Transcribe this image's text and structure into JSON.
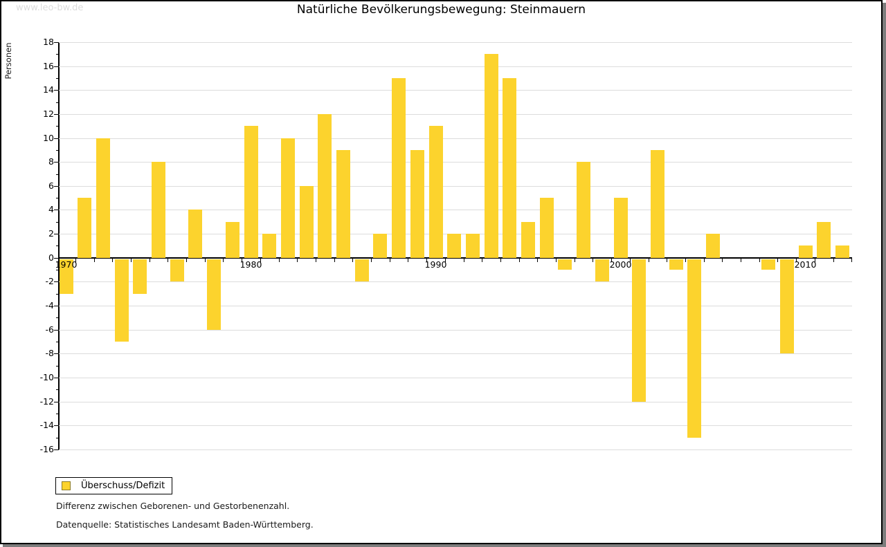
{
  "watermark": "www.leo-bw.de",
  "title": "Natürliche Bevölkerungsbewegung: Steinmauern",
  "ylabel": "Personen",
  "legend": {
    "label": "Überschuss/Defizit"
  },
  "footnotes": {
    "line1": "Differenz zwischen Geborenen- und Gestorbenenzahl.",
    "line2": "Datenquelle: Statistisches Landesamt Baden-Württemberg."
  },
  "colors": {
    "bar": "#FCD32D",
    "legend_swatch_border": "#8C7B26",
    "grid": "#DCDCDC",
    "axis": "#000000",
    "watermark_text": "#DCDCDC",
    "window_shadow": "#7D7D7D"
  },
  "chart_data": {
    "type": "bar",
    "title": "Natürliche Bevölkerungsbewegung: Steinmauern",
    "ylabel": "Personen",
    "xlabel": "",
    "series_name": "Überschuss/Defizit",
    "x": [
      1970,
      1971,
      1972,
      1973,
      1974,
      1975,
      1976,
      1977,
      1978,
      1979,
      1980,
      1981,
      1982,
      1983,
      1984,
      1985,
      1986,
      1987,
      1988,
      1989,
      1990,
      1991,
      1992,
      1993,
      1994,
      1995,
      1996,
      1997,
      1998,
      1999,
      2000,
      2001,
      2002,
      2003,
      2004,
      2005,
      2006,
      2007,
      2008,
      2009,
      2010,
      2011,
      2012
    ],
    "values": [
      -3,
      5,
      10,
      -7,
      -3,
      8,
      -2,
      4,
      -6,
      3,
      11,
      2,
      10,
      6,
      12,
      9,
      -2,
      2,
      15,
      9,
      11,
      2,
      2,
      17,
      15,
      3,
      5,
      -1,
      8,
      -2,
      5,
      -12,
      9,
      -1,
      -15,
      2,
      0,
      0,
      -1,
      -8,
      1,
      3,
      1
    ],
    "ylim": [
      -16,
      18
    ],
    "ytick_step": 2,
    "xtick_labels": [
      1970,
      1980,
      1990,
      2000,
      2010
    ],
    "grid": true,
    "legend_position": "bottom-left"
  }
}
